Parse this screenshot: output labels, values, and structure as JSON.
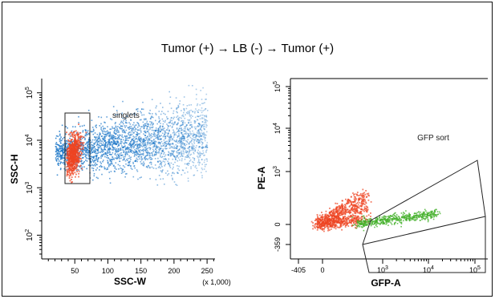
{
  "figure": {
    "title": "Tumor (+) → LB (-) → Tumor (+)"
  },
  "colors": {
    "blue_population": "#1f78c8",
    "red_population": "#ee4422",
    "green_population": "#44b02a",
    "gate_stroke": "#222222"
  },
  "chart_data": [
    {
      "type": "scatter",
      "panel": "left",
      "xlabel": "SSC-W",
      "ylabel": "SSC-H",
      "x_unit": "(x 1,000)",
      "xlim": [
        0,
        262
      ],
      "ylim_log10": [
        1.5,
        5.3
      ],
      "x_ticks": [
        50,
        100,
        150,
        200,
        250
      ],
      "y_ticks": [
        "10^2",
        "10^3",
        "10^4",
        "10^5"
      ],
      "gate_label": "singlets",
      "gate": {
        "shape": "rectangle",
        "x_range": [
          32,
          65
        ],
        "y_range": [
          1100,
          40000
        ]
      },
      "populations": [
        {
          "name": "",
          "color": "blue",
          "x_center": 110,
          "x_spread": 60,
          "y_center": 7000
        },
        {
          "name": "",
          "color": "red",
          "x_center": 46,
          "x_spread": 10,
          "y_center": 5000
        }
      ]
    },
    {
      "type": "scatter",
      "panel": "right",
      "xlabel": "GFP-A",
      "ylabel": "PE-A",
      "x_tick_labels": [
        "-405",
        "0",
        "10^3",
        "10^4",
        "10^5"
      ],
      "y_tick_labels": [
        "-359",
        "0",
        "10^3",
        "10^4",
        "10^5"
      ],
      "gate_label": "GFP sort",
      "gate": {
        "shape": "polygon"
      },
      "populations": [
        {
          "name": "",
          "color": "red",
          "x_range": [
            "-100",
            "500"
          ],
          "y_range": [
            "0",
            "~800"
          ]
        },
        {
          "name": "",
          "color": "green",
          "x_range": [
            "~300",
            "~5000"
          ],
          "y_range": [
            "~0",
            "~100"
          ]
        }
      ]
    }
  ]
}
